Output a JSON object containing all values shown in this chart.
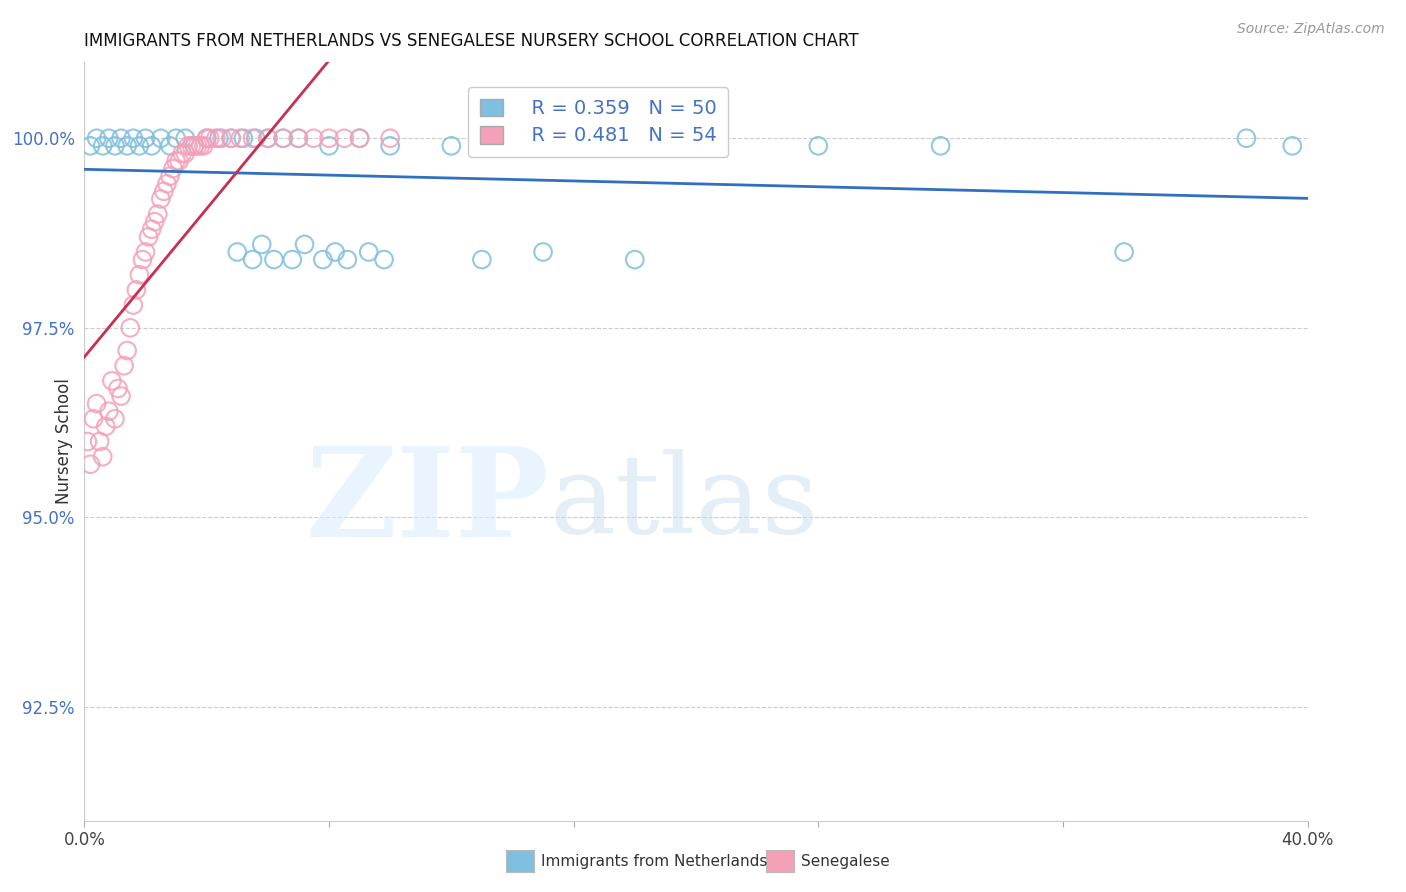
{
  "title": "IMMIGRANTS FROM NETHERLANDS VS SENEGALESE NURSERY SCHOOL CORRELATION CHART",
  "source": "Source: ZipAtlas.com",
  "ylabel": "Nursery School",
  "ytick_labels": [
    "92.5%",
    "95.0%",
    "97.5%",
    "100.0%"
  ],
  "ytick_values": [
    0.925,
    0.95,
    0.975,
    1.0
  ],
  "xlim": [
    0.0,
    0.4
  ],
  "ylim": [
    0.91,
    1.01
  ],
  "legend_blue_r": "R = 0.359",
  "legend_blue_n": "N = 50",
  "legend_pink_r": "R = 0.481",
  "legend_pink_n": "N = 54",
  "blue_color": "#7fbfdf",
  "pink_color": "#f4a0b8",
  "blue_line_color": "#3070c0",
  "pink_line_color": "#c83050",
  "background_color": "#ffffff",
  "grid_color": "#cccccc",
  "blue_scatter_x": [
    0.002,
    0.004,
    0.006,
    0.008,
    0.01,
    0.012,
    0.014,
    0.016,
    0.018,
    0.02,
    0.022,
    0.025,
    0.028,
    0.03,
    0.033,
    0.036,
    0.04,
    0.044,
    0.048,
    0.052,
    0.056,
    0.06,
    0.065,
    0.07,
    0.08,
    0.09,
    0.1,
    0.12,
    0.14,
    0.16,
    0.2,
    0.24,
    0.28,
    0.38,
    0.05,
    0.055,
    0.058,
    0.062,
    0.068,
    0.072,
    0.078,
    0.082,
    0.086,
    0.093,
    0.098,
    0.13,
    0.15,
    0.18,
    0.34,
    0.395
  ],
  "blue_scatter_y": [
    0.999,
    1.0,
    0.999,
    1.0,
    0.999,
    1.0,
    0.999,
    1.0,
    0.999,
    1.0,
    0.999,
    1.0,
    0.999,
    1.0,
    1.0,
    0.999,
    1.0,
    1.0,
    1.0,
    1.0,
    1.0,
    1.0,
    1.0,
    1.0,
    0.999,
    1.0,
    0.999,
    0.999,
    0.999,
    0.999,
    0.999,
    0.999,
    0.999,
    1.0,
    0.985,
    0.984,
    0.986,
    0.984,
    0.984,
    0.986,
    0.984,
    0.985,
    0.984,
    0.985,
    0.984,
    0.984,
    0.985,
    0.984,
    0.985,
    0.999
  ],
  "pink_scatter_x": [
    0.001,
    0.002,
    0.003,
    0.004,
    0.005,
    0.006,
    0.007,
    0.008,
    0.009,
    0.01,
    0.011,
    0.012,
    0.013,
    0.014,
    0.015,
    0.016,
    0.017,
    0.018,
    0.019,
    0.02,
    0.021,
    0.022,
    0.023,
    0.024,
    0.025,
    0.026,
    0.027,
    0.028,
    0.029,
    0.03,
    0.031,
    0.032,
    0.033,
    0.034,
    0.035,
    0.036,
    0.037,
    0.038,
    0.039,
    0.04,
    0.041,
    0.043,
    0.045,
    0.048,
    0.051,
    0.055,
    0.06,
    0.065,
    0.07,
    0.075,
    0.08,
    0.085,
    0.09,
    0.1
  ],
  "pink_scatter_y": [
    0.96,
    0.957,
    0.963,
    0.965,
    0.96,
    0.958,
    0.962,
    0.964,
    0.968,
    0.963,
    0.967,
    0.966,
    0.97,
    0.972,
    0.975,
    0.978,
    0.98,
    0.982,
    0.984,
    0.985,
    0.987,
    0.988,
    0.989,
    0.99,
    0.992,
    0.993,
    0.994,
    0.995,
    0.996,
    0.997,
    0.997,
    0.998,
    0.998,
    0.999,
    0.999,
    0.999,
    0.999,
    0.999,
    0.999,
    1.0,
    1.0,
    1.0,
    1.0,
    1.0,
    1.0,
    1.0,
    1.0,
    1.0,
    1.0,
    1.0,
    1.0,
    1.0,
    1.0,
    1.0
  ]
}
